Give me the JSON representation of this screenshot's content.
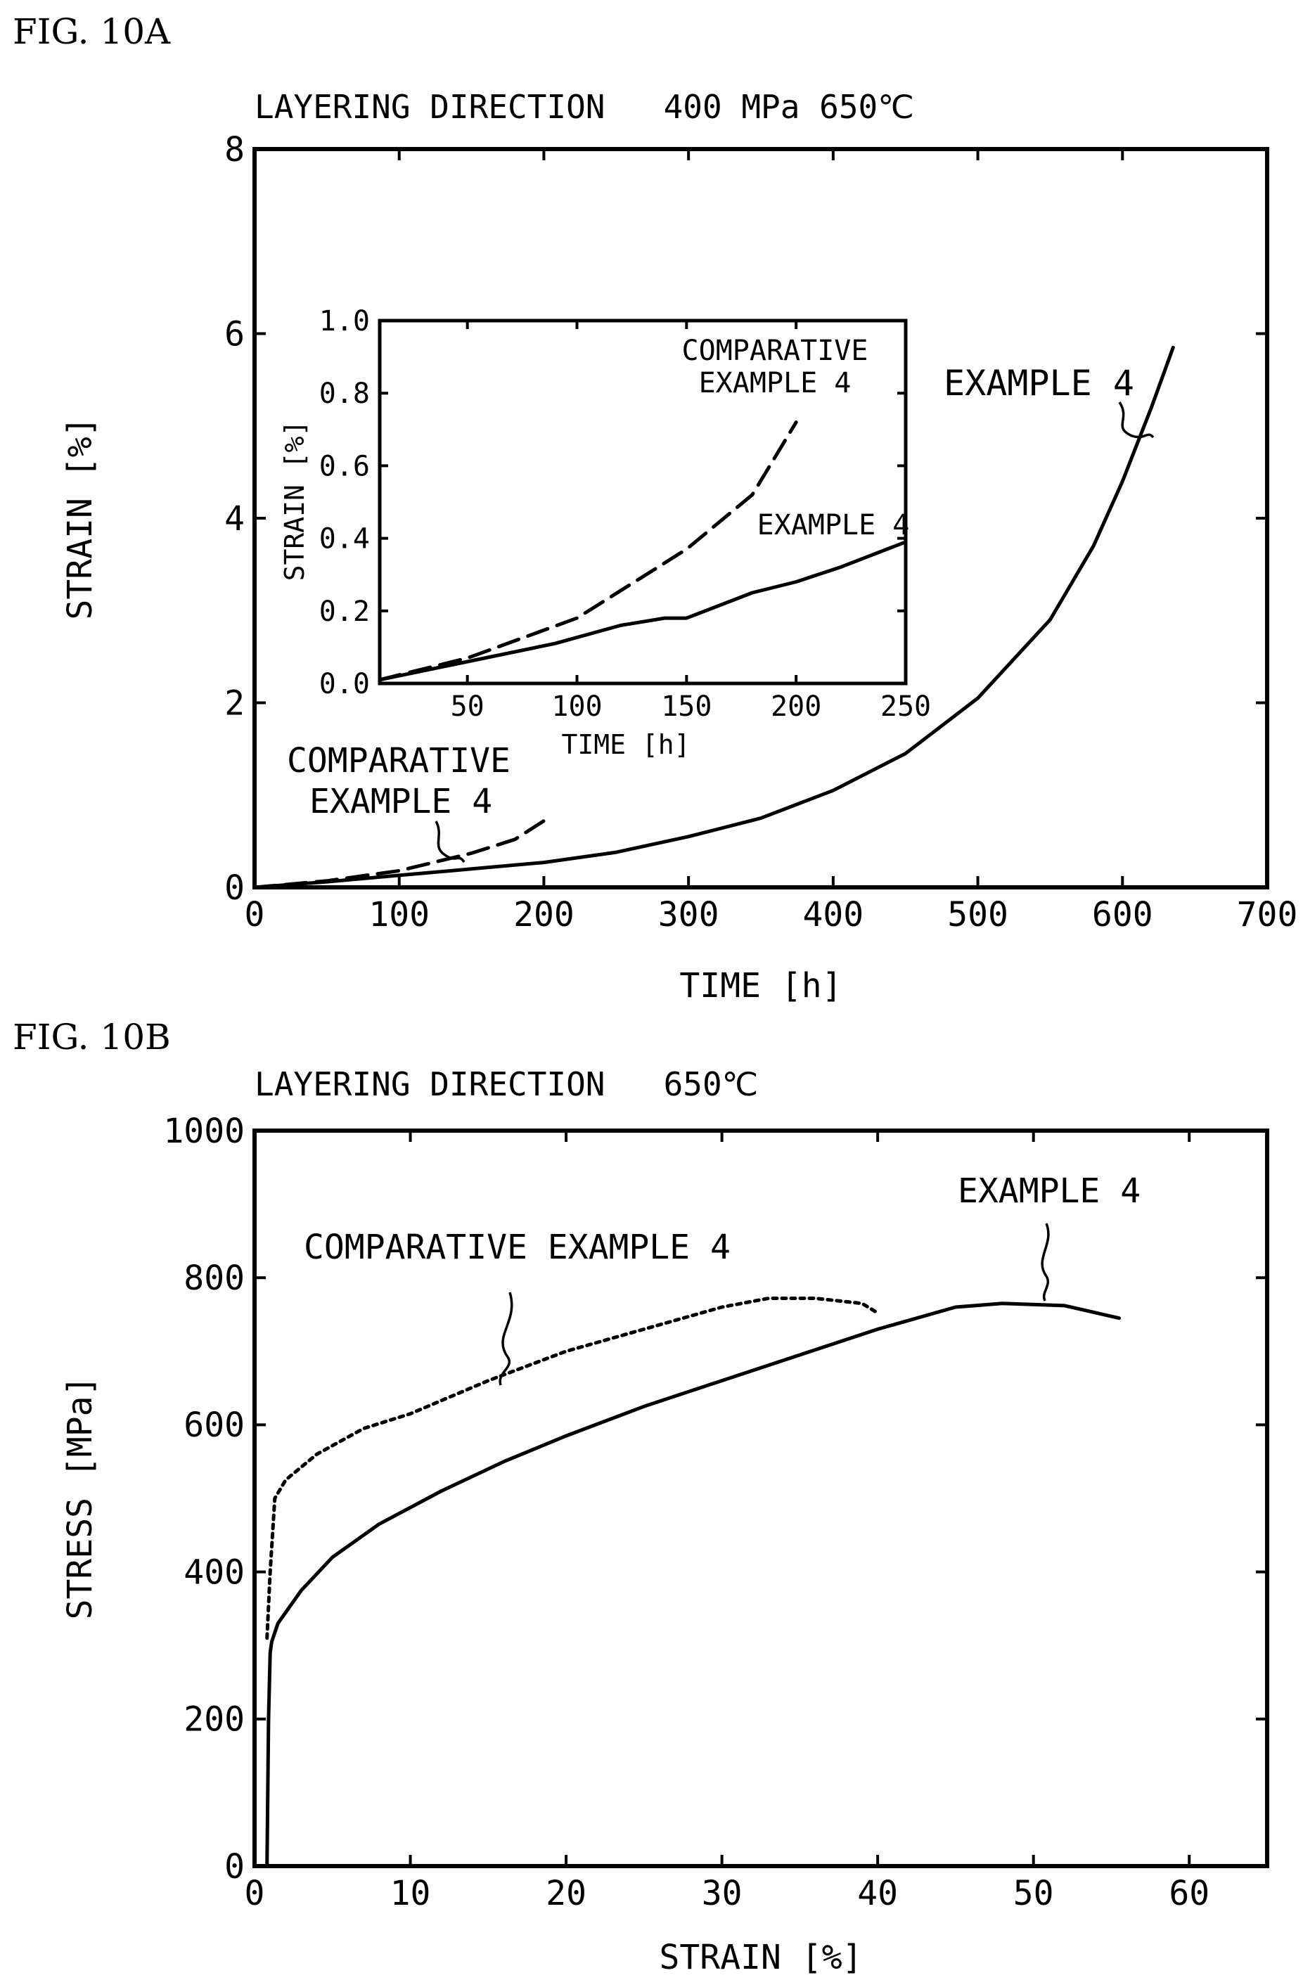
{
  "chart_data": [
    {
      "type": "line",
      "figure_label": "FIG. 10A",
      "title": "LAYERING DIRECTION   400 MPa 650℃",
      "xlabel": "TIME [h]",
      "ylabel": "STRAIN [%]",
      "xlim": [
        0,
        700
      ],
      "ylim": [
        0,
        8
      ],
      "xticks": [
        0,
        100,
        200,
        300,
        400,
        500,
        600,
        700
      ],
      "yticks": [
        0,
        2,
        4,
        6,
        8
      ],
      "grid": false,
      "series": [
        {
          "name": "EXAMPLE 4",
          "style": "solid",
          "x": [
            0,
            50,
            100,
            150,
            200,
            250,
            300,
            350,
            400,
            450,
            500,
            550,
            580,
            600,
            620,
            635
          ],
          "y": [
            0,
            0.06,
            0.13,
            0.2,
            0.27,
            0.38,
            0.55,
            0.75,
            1.05,
            1.45,
            2.05,
            2.9,
            3.7,
            4.4,
            5.2,
            5.85
          ]
        },
        {
          "name": "COMPARATIVE EXAMPLE 4",
          "style": "dashed",
          "x": [
            0,
            50,
            100,
            150,
            180,
            200
          ],
          "y": [
            0,
            0.07,
            0.18,
            0.37,
            0.52,
            0.72
          ]
        }
      ],
      "inset": {
        "xlabel": "TIME [h]",
        "ylabel": "STRAIN [%]",
        "xlim": [
          10,
          250
        ],
        "ylim": [
          0,
          1.0
        ],
        "xticks": [
          50,
          100,
          150,
          200,
          250
        ],
        "yticks": [
          "0.0",
          "0.2",
          "0.4",
          "0.6",
          "0.8",
          "1.0"
        ],
        "series": [
          {
            "name": "EXAMPLE 4",
            "style": "solid",
            "x": [
              10,
              50,
              90,
              120,
              140,
              150,
              180,
              200,
              220,
              250
            ],
            "y": [
              0.01,
              0.06,
              0.11,
              0.16,
              0.18,
              0.18,
              0.25,
              0.28,
              0.32,
              0.39
            ]
          },
          {
            "name": "COMPARATIVE EXAMPLE 4",
            "style": "dashed",
            "x": [
              10,
              50,
              100,
              150,
              180,
              200
            ],
            "y": [
              0.01,
              0.07,
              0.18,
              0.37,
              0.52,
              0.72
            ]
          }
        ]
      }
    },
    {
      "type": "line",
      "figure_label": "FIG. 10B",
      "title": "LAYERING DIRECTION   650℃",
      "xlabel": "STRAIN [%]",
      "ylabel": "STRESS [MPa]",
      "xlim": [
        0,
        65
      ],
      "ylim": [
        0,
        1000
      ],
      "xticks": [
        0,
        10,
        20,
        30,
        40,
        50,
        60
      ],
      "yticks": [
        0,
        200,
        400,
        600,
        800,
        1000
      ],
      "grid": false,
      "series": [
        {
          "name": "EXAMPLE 4",
          "style": "solid",
          "x": [
            0.8,
            0.9,
            1.0,
            1.1,
            1.5,
            3,
            5,
            8,
            12,
            16,
            20,
            25,
            30,
            35,
            40,
            45,
            48,
            52,
            55.5
          ],
          "y": [
            0,
            200,
            290,
            305,
            330,
            375,
            420,
            465,
            510,
            550,
            585,
            625,
            660,
            695,
            730,
            760,
            765,
            762,
            745
          ]
        },
        {
          "name": "COMPARATIVE EXAMPLE 4",
          "style": "dotted",
          "x": [
            0.8,
            1.0,
            1.3,
            2,
            4,
            7,
            10,
            15,
            20,
            25,
            30,
            33,
            36,
            39,
            40
          ],
          "y": [
            310,
            400,
            500,
            525,
            560,
            595,
            615,
            660,
            700,
            730,
            760,
            772,
            772,
            765,
            752
          ]
        }
      ],
      "annotations": [
        "COMPARATIVE EXAMPLE 4",
        "EXAMPLE 4"
      ]
    }
  ]
}
